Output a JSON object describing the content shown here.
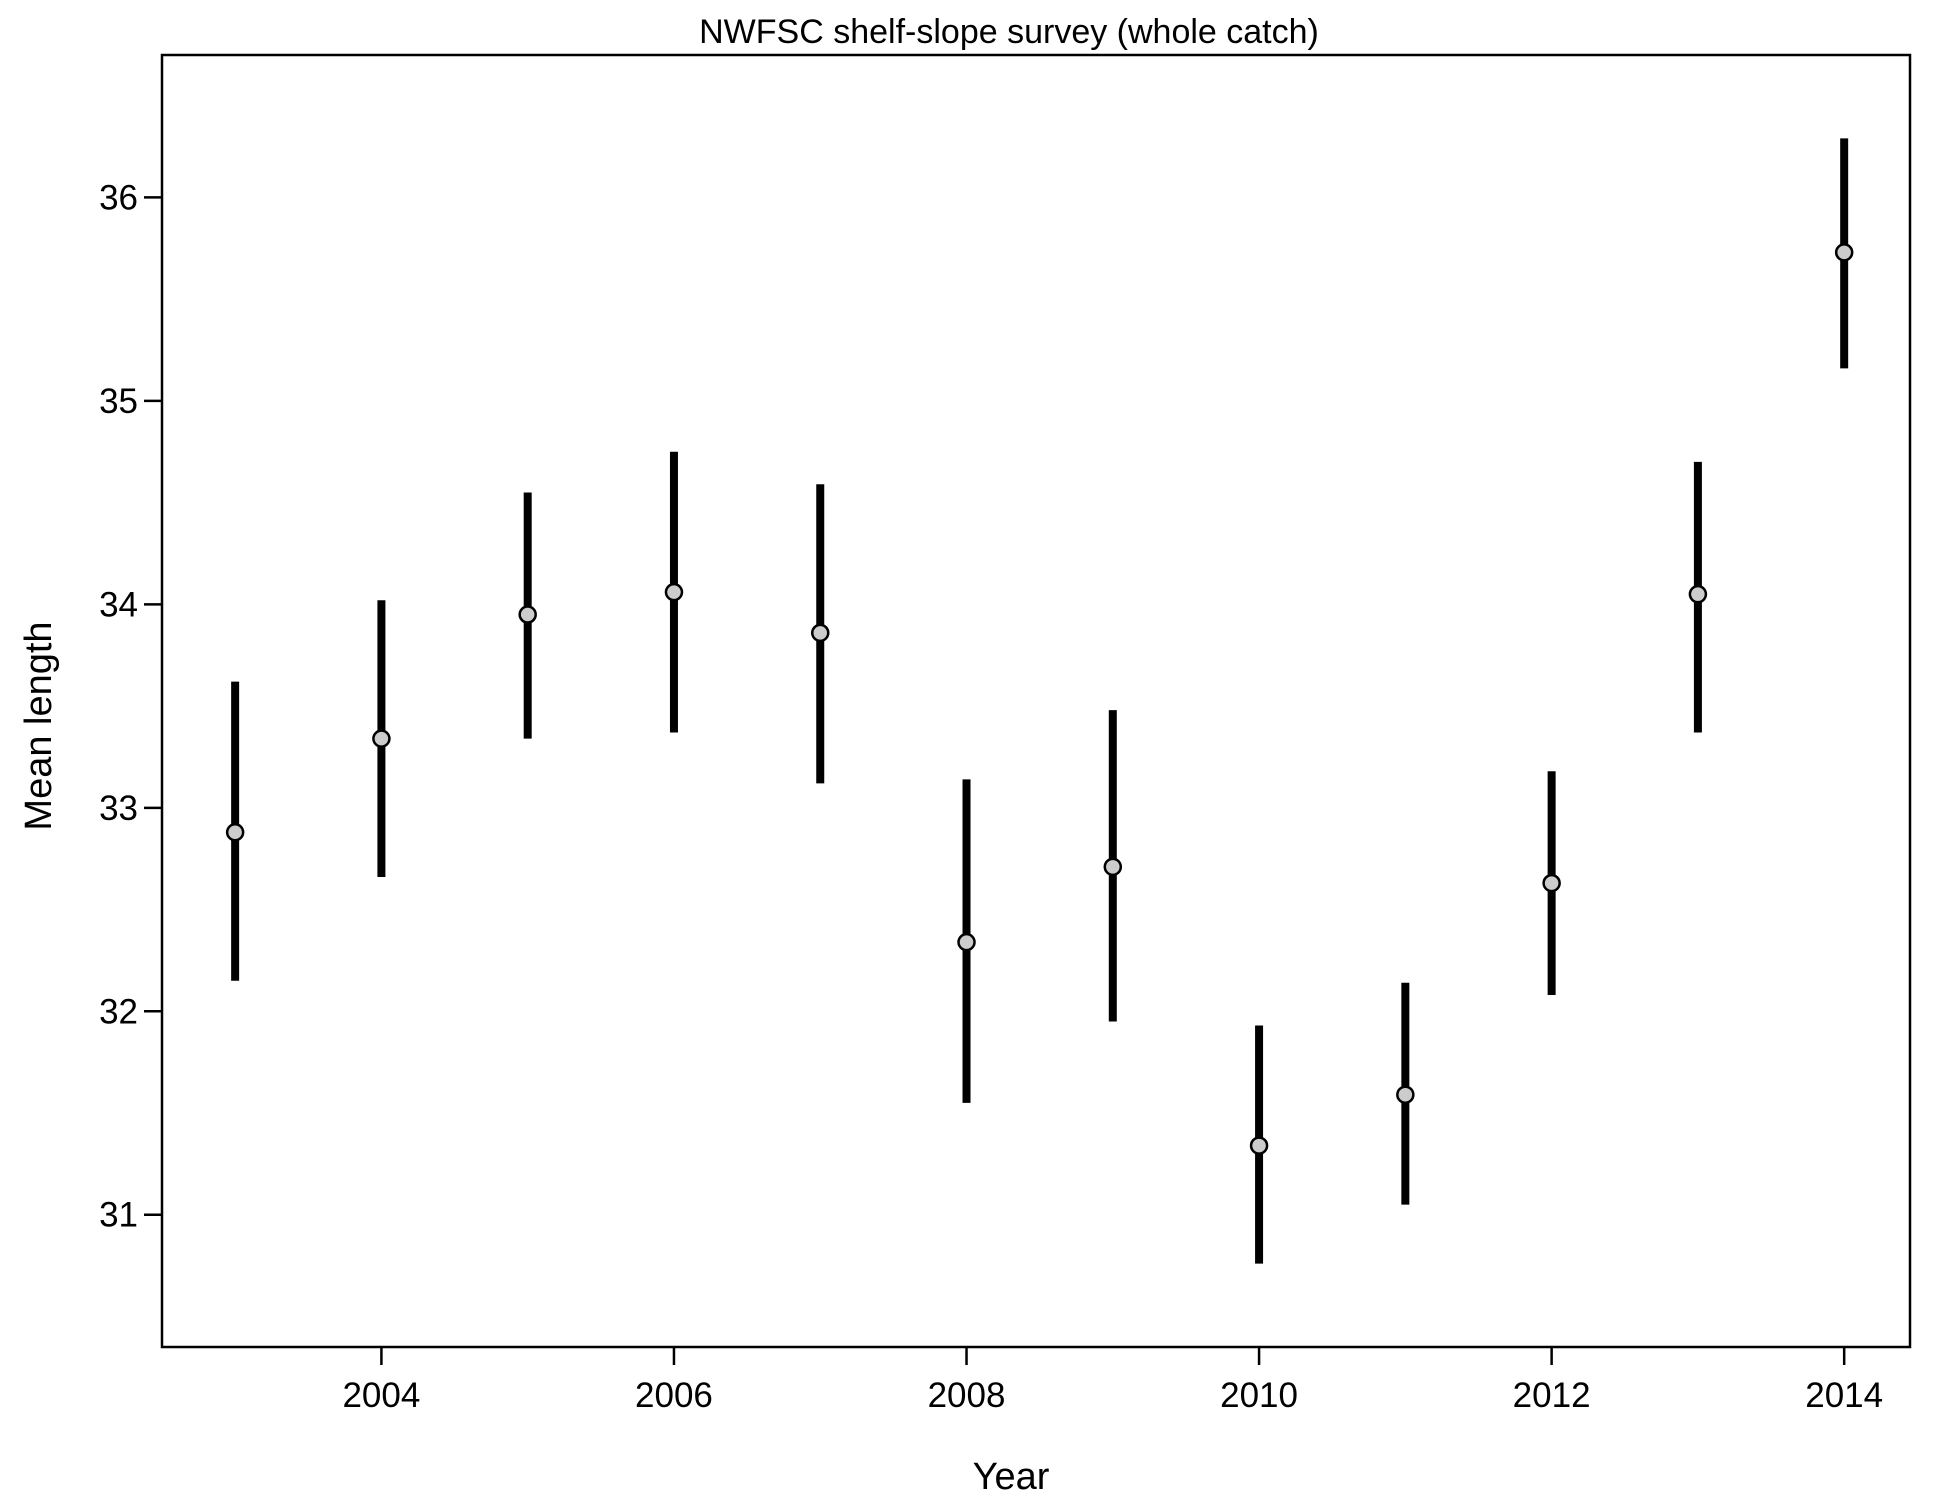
{
  "chart_data": {
    "type": "scatter",
    "title": "NWFSC shelf-slope survey (whole catch)",
    "xlabel": "Year",
    "ylabel": "Mean length",
    "xlim": [
      2002.5,
      2014.45
    ],
    "ylim": [
      30.35,
      36.7
    ],
    "xticks": [
      2004,
      2006,
      2008,
      2010,
      2012,
      2014
    ],
    "yticks": [
      31,
      32,
      33,
      34,
      35,
      36
    ],
    "grid": false,
    "colors": {
      "point_fill": "#cccccc",
      "point_stroke": "#000000",
      "interval": "#000000"
    },
    "series": [
      {
        "x": [
          2003,
          2004,
          2005,
          2006,
          2007,
          2008,
          2009,
          2010,
          2011,
          2012,
          2013,
          2014
        ],
        "values": [
          32.88,
          33.34,
          33.95,
          34.06,
          33.86,
          32.34,
          32.71,
          31.34,
          31.59,
          32.63,
          34.05,
          35.73
        ],
        "lower": [
          32.15,
          32.66,
          33.34,
          33.37,
          33.12,
          31.55,
          31.95,
          30.76,
          31.05,
          32.08,
          33.37,
          35.16
        ],
        "upper": [
          33.62,
          34.02,
          34.55,
          34.75,
          34.59,
          33.14,
          33.48,
          31.93,
          32.14,
          33.18,
          34.7,
          36.29
        ]
      }
    ]
  }
}
